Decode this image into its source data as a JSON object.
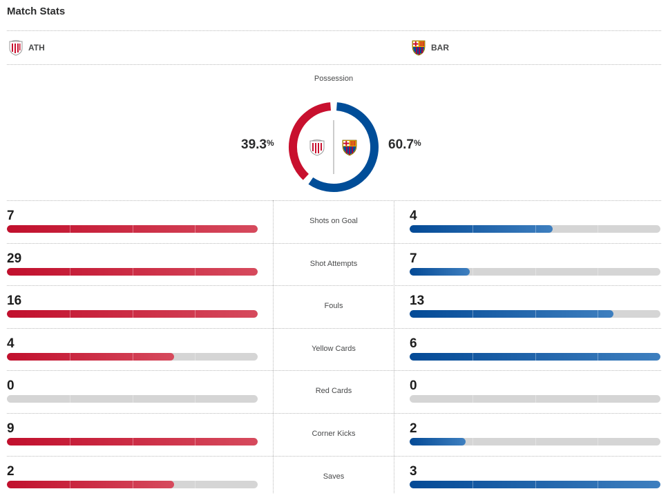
{
  "header": {
    "title": "Match Stats"
  },
  "teams": {
    "home": {
      "abbr": "ATH",
      "color": "#c8102e",
      "crest": "athletic-bilbao-crest-icon"
    },
    "away": {
      "abbr": "BAR",
      "color": "#004d98",
      "crest": "fc-barcelona-crest-icon"
    }
  },
  "possession": {
    "label": "Possession",
    "home_value": "39.3",
    "away_value": "60.7",
    "unit": "%",
    "home_fraction": 0.393,
    "away_fraction": 0.607
  },
  "stats": [
    {
      "label": "Shots on Goal",
      "home": "7",
      "away": "4",
      "home_fill": 1.0,
      "away_fill": 0.571
    },
    {
      "label": "Shot Attempts",
      "home": "29",
      "away": "7",
      "home_fill": 1.0,
      "away_fill": 0.241
    },
    {
      "label": "Fouls",
      "home": "16",
      "away": "13",
      "home_fill": 1.0,
      "away_fill": 0.8125
    },
    {
      "label": "Yellow Cards",
      "home": "4",
      "away": "6",
      "home_fill": 0.667,
      "away_fill": 1.0
    },
    {
      "label": "Red Cards",
      "home": "0",
      "away": "0",
      "home_fill": 0,
      "away_fill": 0
    },
    {
      "label": "Corner Kicks",
      "home": "9",
      "away": "2",
      "home_fill": 1.0,
      "away_fill": 0.222
    },
    {
      "label": "Saves",
      "home": "2",
      "away": "3",
      "home_fill": 0.667,
      "away_fill": 1.0
    }
  ]
}
